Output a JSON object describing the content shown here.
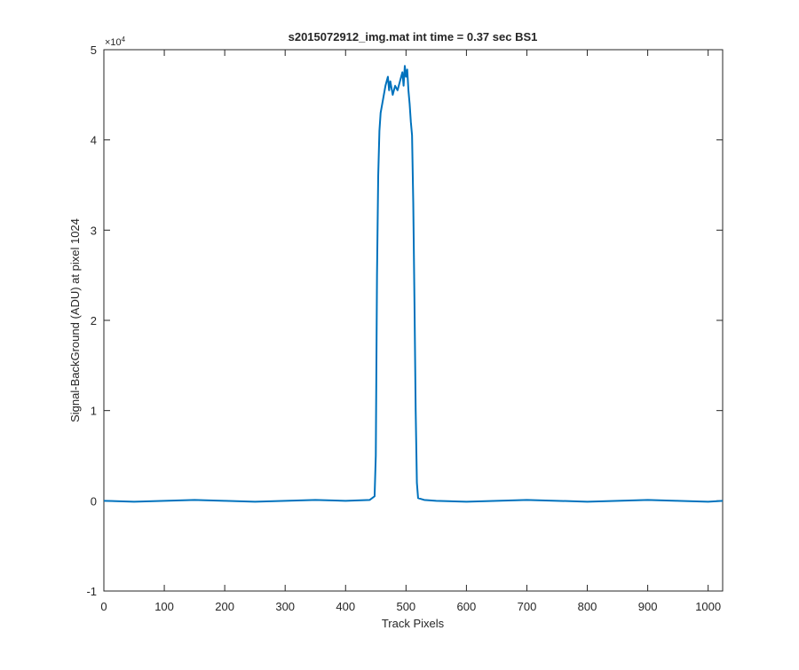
{
  "chart_data": {
    "type": "line",
    "title": "s2015072912_img.mat int time = 0.37 sec   BS1",
    "x_label": "Track Pixels",
    "y_label": "Signal-BackGround (ADU) at pixel 1024",
    "y_exponent": {
      "base": "×10",
      "power": "4"
    },
    "x": [
      0,
      50,
      100,
      150,
      200,
      250,
      300,
      350,
      400,
      440,
      448,
      450,
      452,
      454,
      456,
      458,
      462,
      466,
      470,
      472,
      474,
      478,
      482,
      486,
      490,
      494,
      496,
      498,
      500,
      502,
      504,
      506,
      508,
      510,
      512,
      514,
      516,
      518,
      520,
      530,
      550,
      600,
      650,
      700,
      750,
      800,
      850,
      900,
      950,
      1000,
      1024
    ],
    "series": [
      {
        "color": "#0072bd",
        "values": [
          0,
          -0.01,
          0,
          0.01,
          0,
          -0.01,
          0,
          0.01,
          0,
          0.01,
          0.05,
          0.5,
          2.5,
          3.6,
          4.1,
          4.3,
          4.45,
          4.6,
          4.7,
          4.55,
          4.65,
          4.5,
          4.6,
          4.55,
          4.65,
          4.75,
          4.6,
          4.82,
          4.7,
          4.78,
          4.55,
          4.4,
          4.2,
          4.05,
          3.3,
          2.2,
          1.0,
          0.2,
          0.03,
          0.01,
          0,
          -0.01,
          0,
          0.01,
          0,
          -0.01,
          0,
          0.01,
          0,
          -0.01,
          0
        ]
      }
    ],
    "xlim": [
      0,
      1024
    ],
    "xticks": [
      0,
      100,
      200,
      300,
      400,
      500,
      600,
      700,
      800,
      900,
      1000
    ],
    "ylim": [
      -1,
      5
    ],
    "yticks": [
      -1,
      0,
      1,
      2,
      3,
      4,
      5
    ],
    "grid": false
  }
}
